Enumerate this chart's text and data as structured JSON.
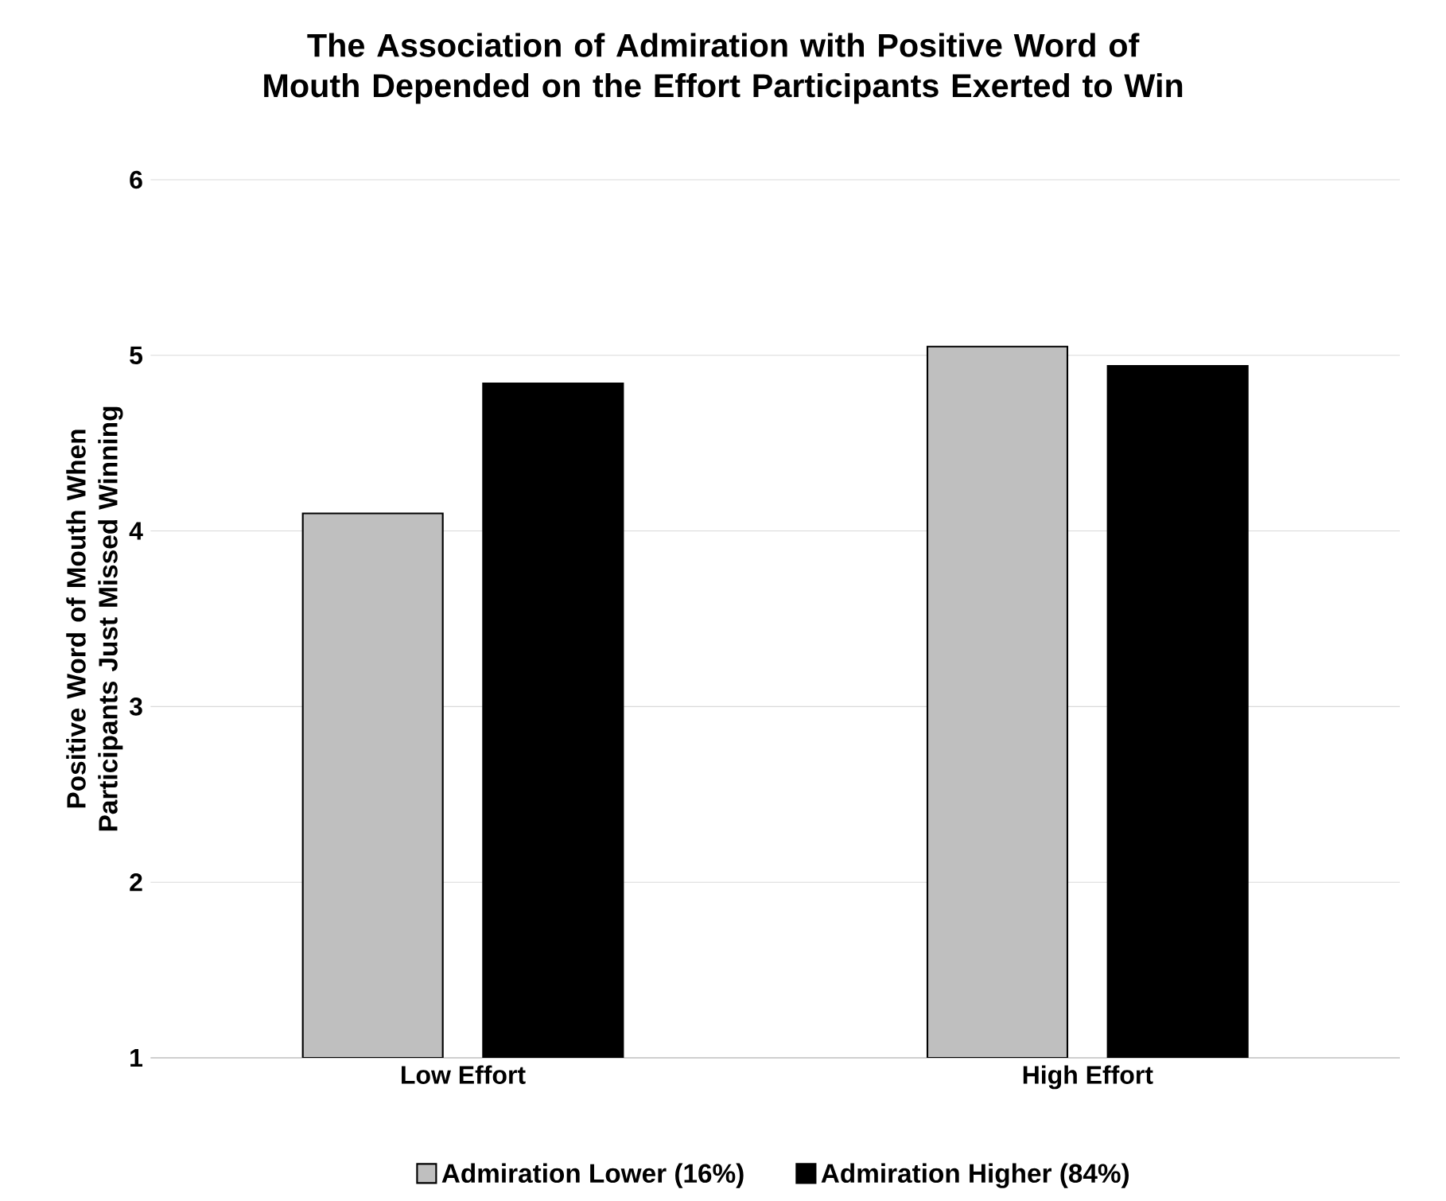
{
  "chart_data": {
    "type": "bar",
    "title": "The Association of Admiration with Positive Word of Mouth Depended on the Effort Participants Exerted to Win",
    "ylabel": "Positive Word of Mouth When Participants Just Missed Winning",
    "categories": [
      "Low Effort",
      "High Effort"
    ],
    "series": [
      {
        "name": "Admiration Lower (16%)",
        "color": "#bfbfbf",
        "values": [
          4.1,
          5.05
        ]
      },
      {
        "name": "Admiration Higher (84%)",
        "color": "#000000",
        "values": [
          4.84,
          4.94
        ]
      }
    ],
    "ylim": [
      1,
      6
    ],
    "yticks": [
      1,
      2,
      3,
      4,
      5,
      6
    ],
    "grid": "y",
    "legend": "bottom"
  }
}
